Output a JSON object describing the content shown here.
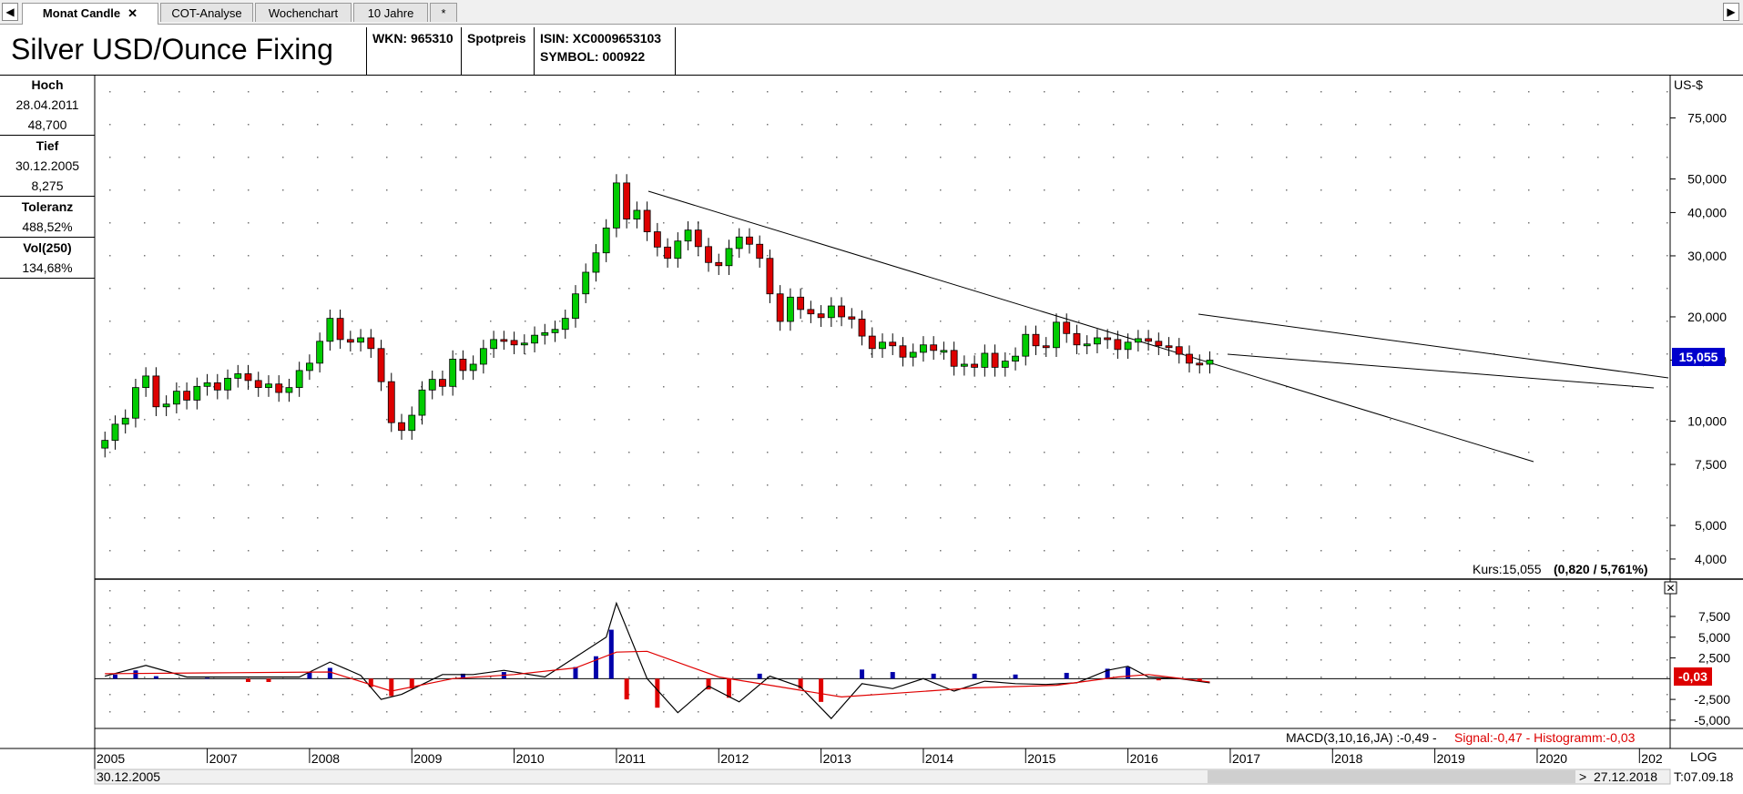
{
  "tabs": [
    {
      "label": "Monat Candle",
      "active": true,
      "close": "✕"
    },
    {
      "label": "COT-Analyse",
      "active": false
    },
    {
      "label": "Wochenchart",
      "active": false
    },
    {
      "label": "10 Jahre",
      "active": false
    },
    {
      "label": "*",
      "active": false
    }
  ],
  "header": {
    "title": "Silver USD/Ounce Fixing",
    "wkn": "WKN: 965310",
    "type": "Spotpreis",
    "isin": "ISIN: XC0009653103",
    "symbol": "SYMBOL: 000922"
  },
  "side": {
    "hoch_label": "Hoch",
    "hoch_date": "28.04.2011",
    "hoch_value": "48,700",
    "tief_label": "Tief",
    "tief_date": "30.12.2005",
    "tief_value": "8,275",
    "tol_label": "Toleranz",
    "tol_value": "488,52%",
    "vol_label": "Vol(250)",
    "vol_value": "134,68%"
  },
  "price_panel": {
    "unit": "US-$",
    "current": "15,055",
    "kurs_text": "Kurs:15,055",
    "change_text": "(0,820 / 5,761%)"
  },
  "macd_panel": {
    "current": "-0,03",
    "legend_main": "MACD(3,10,16,JA) :-0,49 - ",
    "legend_signal": "Signal:-0,47 - Histogramm:-0,03",
    "close": "✕"
  },
  "footer": {
    "start": "30.12.2005",
    "end": "27.12.2018",
    "log": "LOG",
    "t": "T:07.09.18",
    "arrow": ">"
  },
  "colors": {
    "up": "#00cc00",
    "down": "#dd0000",
    "macd_hist": "#0000aa",
    "signal": "#e00000",
    "accent": "#0000cc"
  },
  "chart_data": [
    {
      "type": "candlestick",
      "title": "Silver USD/Ounce Fixing",
      "ylabel": "US-$",
      "yscale": "log",
      "ylim": [
        3.5,
        100
      ],
      "y_ticks": [
        {
          "v": 75,
          "label": "75,000"
        },
        {
          "v": 50,
          "label": "50,000"
        },
        {
          "v": 40,
          "label": "40,000"
        },
        {
          "v": 30,
          "label": "30,000"
        },
        {
          "v": 20,
          "label": "20,000"
        },
        {
          "v": 15,
          "label": "15,000"
        },
        {
          "v": 10,
          "label": "10,000"
        },
        {
          "v": 7.5,
          "label": "7,500"
        },
        {
          "v": 5,
          "label": "5,000"
        },
        {
          "v": 4,
          "label": "4,000"
        }
      ],
      "x_ticks": [
        "2005",
        "2007",
        "2008",
        "2009",
        "2010",
        "2011",
        "2012",
        "2013",
        "2014",
        "2015",
        "2016",
        "2017",
        "2018",
        "2019",
        "2020",
        "202"
      ],
      "x_tick_values": [
        2005.9,
        2007,
        2008,
        2009,
        2010,
        2011,
        2012,
        2013,
        2014,
        2015,
        2016,
        2017,
        2018,
        2019,
        2020,
        2021
      ],
      "xlim": [
        2005.9,
        2021.3
      ],
      "series": [
        {
          "name": "Silver monthly close",
          "points": [
            [
              2006.0,
              8.8
            ],
            [
              2006.1,
              9.8
            ],
            [
              2006.2,
              10.2
            ],
            [
              2006.3,
              12.5
            ],
            [
              2006.4,
              13.5
            ],
            [
              2006.5,
              11.0
            ],
            [
              2006.6,
              11.2
            ],
            [
              2006.7,
              12.2
            ],
            [
              2006.8,
              11.5
            ],
            [
              2006.9,
              12.6
            ],
            [
              2007.0,
              12.9
            ],
            [
              2007.1,
              12.3
            ],
            [
              2007.2,
              13.3
            ],
            [
              2007.3,
              13.7
            ],
            [
              2007.4,
              13.1
            ],
            [
              2007.5,
              12.5
            ],
            [
              2007.6,
              12.8
            ],
            [
              2007.7,
              12.1
            ],
            [
              2007.8,
              12.5
            ],
            [
              2007.9,
              14.0
            ],
            [
              2008.0,
              14.7
            ],
            [
              2008.1,
              17.0
            ],
            [
              2008.2,
              19.8
            ],
            [
              2008.3,
              17.2
            ],
            [
              2008.4,
              16.9
            ],
            [
              2008.5,
              17.4
            ],
            [
              2008.6,
              16.2
            ],
            [
              2008.7,
              13.0
            ],
            [
              2008.8,
              9.9
            ],
            [
              2008.9,
              9.4
            ],
            [
              2009.0,
              10.4
            ],
            [
              2009.1,
              12.3
            ],
            [
              2009.2,
              13.2
            ],
            [
              2009.3,
              12.6
            ],
            [
              2009.4,
              15.1
            ],
            [
              2009.5,
              14.0
            ],
            [
              2009.6,
              14.6
            ],
            [
              2009.7,
              16.2
            ],
            [
              2009.8,
              17.2
            ],
            [
              2009.9,
              17.1
            ],
            [
              2010.0,
              16.6
            ],
            [
              2010.1,
              16.8
            ],
            [
              2010.2,
              17.7
            ],
            [
              2010.3,
              18.0
            ],
            [
              2010.4,
              18.4
            ],
            [
              2010.5,
              19.8
            ],
            [
              2010.6,
              23.3
            ],
            [
              2010.7,
              26.9
            ],
            [
              2010.8,
              30.6
            ],
            [
              2010.9,
              36.1
            ],
            [
              2011.0,
              48.7
            ],
            [
              2011.1,
              38.3
            ],
            [
              2011.2,
              40.6
            ],
            [
              2011.3,
              35.2
            ],
            [
              2011.4,
              31.8
            ],
            [
              2011.5,
              29.5
            ],
            [
              2011.6,
              33.1
            ],
            [
              2011.7,
              35.6
            ],
            [
              2011.8,
              31.9
            ],
            [
              2011.9,
              28.7
            ],
            [
              2012.0,
              28.1
            ],
            [
              2012.1,
              31.5
            ],
            [
              2012.2,
              34.0
            ],
            [
              2012.3,
              32.4
            ],
            [
              2012.4,
              29.5
            ],
            [
              2012.5,
              23.3
            ],
            [
              2012.6,
              19.4
            ],
            [
              2012.7,
              22.8
            ],
            [
              2012.8,
              21.0
            ],
            [
              2012.9,
              20.4
            ],
            [
              2013.0,
              19.9
            ],
            [
              2013.1,
              21.5
            ],
            [
              2013.2,
              20.0
            ],
            [
              2013.3,
              19.7
            ],
            [
              2013.4,
              17.6
            ],
            [
              2013.5,
              16.2
            ],
            [
              2013.6,
              16.9
            ],
            [
              2013.7,
              16.5
            ],
            [
              2013.8,
              15.3
            ],
            [
              2013.9,
              15.8
            ],
            [
              2014.0,
              16.6
            ],
            [
              2014.1,
              16.0
            ],
            [
              2014.2,
              16.0
            ],
            [
              2014.3,
              14.4
            ],
            [
              2014.4,
              14.6
            ],
            [
              2014.5,
              14.3
            ],
            [
              2014.6,
              15.7
            ],
            [
              2014.7,
              14.3
            ],
            [
              2014.8,
              14.9
            ],
            [
              2014.9,
              15.4
            ],
            [
              2015.0,
              17.8
            ],
            [
              2015.1,
              16.5
            ],
            [
              2015.2,
              16.3
            ],
            [
              2015.3,
              19.3
            ],
            [
              2015.4,
              17.9
            ],
            [
              2015.5,
              16.6
            ],
            [
              2015.6,
              16.7
            ],
            [
              2015.7,
              17.4
            ],
            [
              2015.8,
              17.2
            ],
            [
              2015.9,
              16.1
            ],
            [
              2016.0,
              16.9
            ],
            [
              2016.1,
              17.3
            ],
            [
              2016.2,
              17.0
            ],
            [
              2016.3,
              16.5
            ],
            [
              2016.4,
              16.4
            ],
            [
              2016.5,
              15.6
            ],
            [
              2016.6,
              14.7
            ],
            [
              2016.7,
              14.6
            ],
            [
              2016.8,
              15.0
            ]
          ]
        }
      ],
      "annotations": [
        "Kurs:15,055 (0,820 / 5,761%)"
      ]
    },
    {
      "type": "macd",
      "ylim": [
        -6000,
        12000
      ],
      "y_ticks": [
        {
          "v": 7500,
          "label": "7,500"
        },
        {
          "v": 5000,
          "label": "5,000"
        },
        {
          "v": 2500,
          "label": "2,500"
        },
        {
          "v": 0,
          "label": "0"
        },
        {
          "v": -2500,
          "label": "-2,500"
        },
        {
          "v": -5000,
          "label": "-5,000"
        }
      ],
      "legend": "MACD(3,10,16,JA) :-0,49 - Signal:-0,47 - Histogramm:-0,03",
      "series": [
        {
          "name": "MACD",
          "points": [
            [
              2006.0,
              0.3
            ],
            [
              2006.4,
              1.6
            ],
            [
              2006.8,
              0.2
            ],
            [
              2007.3,
              0.2
            ],
            [
              2007.9,
              0.2
            ],
            [
              2008.2,
              2.0
            ],
            [
              2008.5,
              0.4
            ],
            [
              2008.7,
              -2.5
            ],
            [
              2008.9,
              -1.9
            ],
            [
              2009.3,
              0.5
            ],
            [
              2009.6,
              0.5
            ],
            [
              2009.9,
              1.0
            ],
            [
              2010.3,
              0.2
            ],
            [
              2010.6,
              2.6
            ],
            [
              2010.9,
              5.0
            ],
            [
              2011.0,
              9.1
            ],
            [
              2011.3,
              0.0
            ],
            [
              2011.6,
              -4.1
            ],
            [
              2011.9,
              -0.9
            ],
            [
              2012.2,
              -2.8
            ],
            [
              2012.5,
              0.3
            ],
            [
              2012.8,
              -1.0
            ],
            [
              2013.1,
              -4.8
            ],
            [
              2013.4,
              -0.6
            ],
            [
              2013.7,
              -1.2
            ],
            [
              2014.0,
              0.0
            ],
            [
              2014.3,
              -1.5
            ],
            [
              2014.6,
              -0.3
            ],
            [
              2014.9,
              -0.6
            ],
            [
              2015.2,
              -0.7
            ],
            [
              2015.5,
              -0.5
            ],
            [
              2015.8,
              1.0
            ],
            [
              2016.0,
              1.5
            ],
            [
              2016.2,
              0.2
            ],
            [
              2016.5,
              0.0
            ],
            [
              2016.8,
              -0.5
            ]
          ]
        },
        {
          "name": "Signal",
          "points": [
            [
              2006.0,
              0.6
            ],
            [
              2007.0,
              0.7
            ],
            [
              2008.2,
              0.8
            ],
            [
              2008.8,
              -1.5
            ],
            [
              2009.4,
              0.0
            ],
            [
              2010.0,
              0.5
            ],
            [
              2010.6,
              1.3
            ],
            [
              2011.0,
              3.2
            ],
            [
              2011.3,
              3.3
            ],
            [
              2012.0,
              0.2
            ],
            [
              2012.6,
              -1.0
            ],
            [
              2013.2,
              -2.2
            ],
            [
              2013.8,
              -1.7
            ],
            [
              2014.5,
              -1.1
            ],
            [
              2015.3,
              -0.8
            ],
            [
              2015.9,
              0.2
            ],
            [
              2016.2,
              0.5
            ],
            [
              2016.8,
              -0.4
            ]
          ]
        }
      ],
      "histogram": [
        [
          2006.1,
          0.5
        ],
        [
          2006.3,
          1.0
        ],
        [
          2006.5,
          0.3
        ],
        [
          2007.0,
          0.1
        ],
        [
          2007.4,
          -0.4
        ],
        [
          2007.6,
          -0.4
        ],
        [
          2008.0,
          0.8
        ],
        [
          2008.2,
          1.3
        ],
        [
          2008.6,
          -1.0
        ],
        [
          2008.8,
          -2.1
        ],
        [
          2009.0,
          -1.2
        ],
        [
          2009.5,
          0.6
        ],
        [
          2009.9,
          0.8
        ],
        [
          2010.6,
          1.4
        ],
        [
          2010.8,
          2.7
        ],
        [
          2010.95,
          5.9
        ],
        [
          2011.1,
          -2.5
        ],
        [
          2011.4,
          -3.5
        ],
        [
          2011.9,
          -1.3
        ],
        [
          2012.1,
          -2.3
        ],
        [
          2012.4,
          0.6
        ],
        [
          2012.8,
          -1.2
        ],
        [
          2013.0,
          -2.8
        ],
        [
          2013.4,
          1.1
        ],
        [
          2013.7,
          0.8
        ],
        [
          2014.1,
          0.6
        ],
        [
          2014.5,
          0.6
        ],
        [
          2014.9,
          0.5
        ],
        [
          2015.4,
          0.7
        ],
        [
          2015.8,
          1.2
        ],
        [
          2016.0,
          1.4
        ],
        [
          2016.3,
          -0.2
        ],
        [
          2016.7,
          -0.3
        ]
      ]
    }
  ]
}
